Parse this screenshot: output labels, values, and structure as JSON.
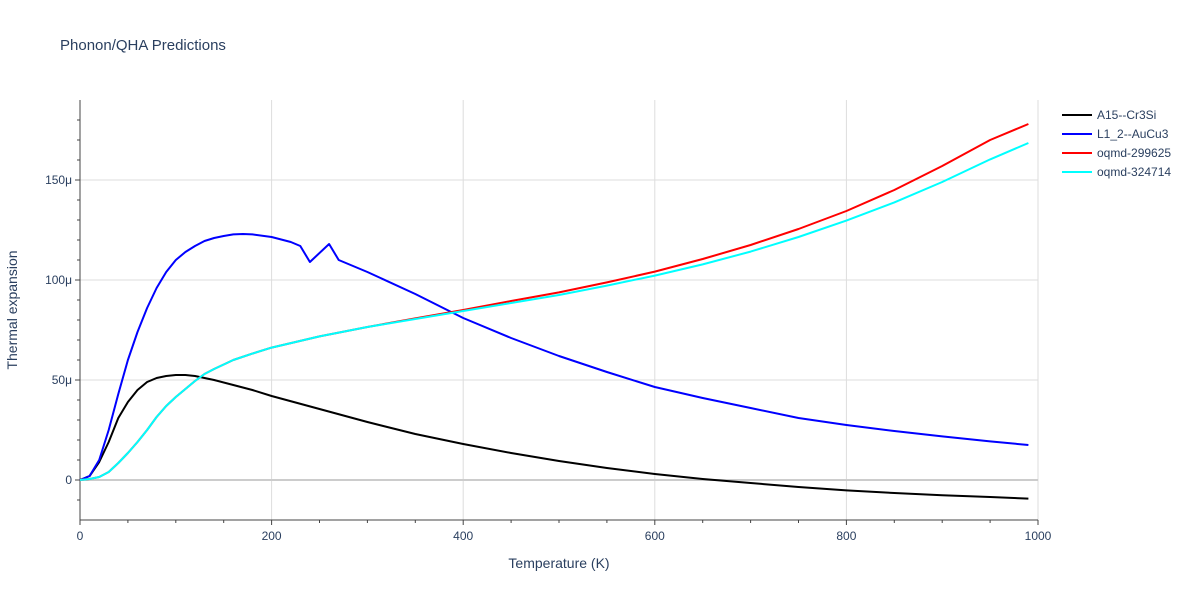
{
  "chart_data": {
    "type": "line",
    "title": "Phonon/QHA Predictions",
    "xlabel": "Temperature (K)",
    "ylabel": "Thermal expansion",
    "xlim": [
      0,
      1000
    ],
    "ylim": [
      -2e-05,
      0.00019
    ],
    "x_ticks": [
      0,
      200,
      400,
      600,
      800,
      1000
    ],
    "x_tick_labels": [
      "0",
      "200",
      "400",
      "600",
      "800",
      "1000"
    ],
    "y_ticks": [
      0,
      5e-05,
      0.0001,
      0.00015
    ],
    "y_tick_labels": [
      "0",
      "50μ",
      "100μ",
      "150μ"
    ],
    "grid": true,
    "legend_position": "top-right",
    "series": [
      {
        "name": "A15--Cr3Si",
        "color": "#000000",
        "points": [
          [
            0,
            0
          ],
          [
            10,
            2e-06
          ],
          [
            20,
            9e-06
          ],
          [
            30,
            1.9e-05
          ],
          [
            40,
            3.1e-05
          ],
          [
            50,
            3.9e-05
          ],
          [
            60,
            4.5e-05
          ],
          [
            70,
            4.9e-05
          ],
          [
            80,
            5.1e-05
          ],
          [
            90,
            5.2e-05
          ],
          [
            100,
            5.25e-05
          ],
          [
            110,
            5.25e-05
          ],
          [
            120,
            5.2e-05
          ],
          [
            140,
            5e-05
          ],
          [
            160,
            4.75e-05
          ],
          [
            180,
            4.5e-05
          ],
          [
            200,
            4.2e-05
          ],
          [
            250,
            3.55e-05
          ],
          [
            300,
            2.9e-05
          ],
          [
            350,
            2.3e-05
          ],
          [
            400,
            1.8e-05
          ],
          [
            450,
            1.35e-05
          ],
          [
            500,
            9.5e-06
          ],
          [
            550,
            6e-06
          ],
          [
            600,
            3e-06
          ],
          [
            650,
            5e-07
          ],
          [
            700,
            -1.5e-06
          ],
          [
            750,
            -3.5e-06
          ],
          [
            800,
            -5.2e-06
          ],
          [
            850,
            -6.5e-06
          ],
          [
            900,
            -7.6e-06
          ],
          [
            950,
            -8.5e-06
          ],
          [
            990,
            -9.3e-06
          ]
        ]
      },
      {
        "name": "L1_2--AuCu3",
        "color": "#0000ff",
        "points": [
          [
            0,
            0
          ],
          [
            10,
            2e-06
          ],
          [
            20,
            1e-05
          ],
          [
            30,
            2.5e-05
          ],
          [
            40,
            4.3e-05
          ],
          [
            50,
            6e-05
          ],
          [
            60,
            7.4e-05
          ],
          [
            70,
            8.6e-05
          ],
          [
            80,
            9.6e-05
          ],
          [
            90,
            0.000104
          ],
          [
            100,
            0.00011
          ],
          [
            110,
            0.000114
          ],
          [
            120,
            0.000117
          ],
          [
            130,
            0.0001195
          ],
          [
            140,
            0.000121
          ],
          [
            150,
            0.000122
          ],
          [
            160,
            0.0001228
          ],
          [
            170,
            0.000123
          ],
          [
            180,
            0.0001228
          ],
          [
            200,
            0.0001215
          ],
          [
            220,
            0.000119
          ],
          [
            230,
            0.000117
          ],
          [
            240,
            0.000109
          ],
          [
            260,
            0.000118
          ],
          [
            270,
            0.00011
          ],
          [
            300,
            0.000104
          ],
          [
            350,
            9.3e-05
          ],
          [
            400,
            8.1e-05
          ],
          [
            450,
            7.1e-05
          ],
          [
            500,
            6.2e-05
          ],
          [
            550,
            5.4e-05
          ],
          [
            600,
            4.65e-05
          ],
          [
            650,
            4.1e-05
          ],
          [
            700,
            3.6e-05
          ],
          [
            750,
            3.1e-05
          ],
          [
            800,
            2.75e-05
          ],
          [
            850,
            2.45e-05
          ],
          [
            900,
            2.18e-05
          ],
          [
            950,
            1.93e-05
          ],
          [
            990,
            1.75e-05
          ]
        ]
      },
      {
        "name": "oqmd-299625",
        "color": "#ff0000",
        "points": [
          [
            0,
            0
          ],
          [
            10,
            5e-07
          ],
          [
            20,
            1.5e-06
          ],
          [
            30,
            4e-06
          ],
          [
            40,
            8.5e-06
          ],
          [
            50,
            1.35e-05
          ],
          [
            60,
            1.9e-05
          ],
          [
            70,
            2.5e-05
          ],
          [
            80,
            3.15e-05
          ],
          [
            90,
            3.7e-05
          ],
          [
            100,
            4.15e-05
          ],
          [
            110,
            4.55e-05
          ],
          [
            120,
            4.95e-05
          ],
          [
            130,
            5.3e-05
          ],
          [
            140,
            5.55e-05
          ],
          [
            160,
            6e-05
          ],
          [
            180,
            6.32e-05
          ],
          [
            200,
            6.62e-05
          ],
          [
            250,
            7.18e-05
          ],
          [
            300,
            7.65e-05
          ],
          [
            350,
            8.08e-05
          ],
          [
            400,
            8.5e-05
          ],
          [
            450,
            8.95e-05
          ],
          [
            500,
            9.38e-05
          ],
          [
            550,
            9.88e-05
          ],
          [
            600,
            0.0001042
          ],
          [
            650,
            0.0001105
          ],
          [
            700,
            0.0001175
          ],
          [
            750,
            0.0001255
          ],
          [
            800,
            0.0001345
          ],
          [
            850,
            0.000145
          ],
          [
            900,
            0.000157
          ],
          [
            950,
            0.00017
          ],
          [
            990,
            0.000178
          ]
        ]
      },
      {
        "name": "oqmd-324714",
        "color": "#00ffff",
        "points": [
          [
            0,
            0
          ],
          [
            10,
            5e-07
          ],
          [
            20,
            1.5e-06
          ],
          [
            30,
            4e-06
          ],
          [
            40,
            8.5e-06
          ],
          [
            50,
            1.35e-05
          ],
          [
            60,
            1.9e-05
          ],
          [
            70,
            2.5e-05
          ],
          [
            80,
            3.15e-05
          ],
          [
            90,
            3.7e-05
          ],
          [
            100,
            4.15e-05
          ],
          [
            110,
            4.55e-05
          ],
          [
            120,
            4.95e-05
          ],
          [
            130,
            5.3e-05
          ],
          [
            140,
            5.55e-05
          ],
          [
            160,
            6e-05
          ],
          [
            180,
            6.32e-05
          ],
          [
            200,
            6.62e-05
          ],
          [
            250,
            7.18e-05
          ],
          [
            300,
            7.65e-05
          ],
          [
            350,
            8.05e-05
          ],
          [
            400,
            8.45e-05
          ],
          [
            450,
            8.85e-05
          ],
          [
            500,
            9.25e-05
          ],
          [
            550,
            9.72e-05
          ],
          [
            600,
            0.0001022
          ],
          [
            650,
            0.0001078
          ],
          [
            700,
            0.0001142
          ],
          [
            750,
            0.0001215
          ],
          [
            800,
            0.0001297
          ],
          [
            850,
            0.0001388
          ],
          [
            900,
            0.000149
          ],
          [
            950,
            0.0001603
          ],
          [
            990,
            0.0001685
          ]
        ]
      }
    ]
  }
}
